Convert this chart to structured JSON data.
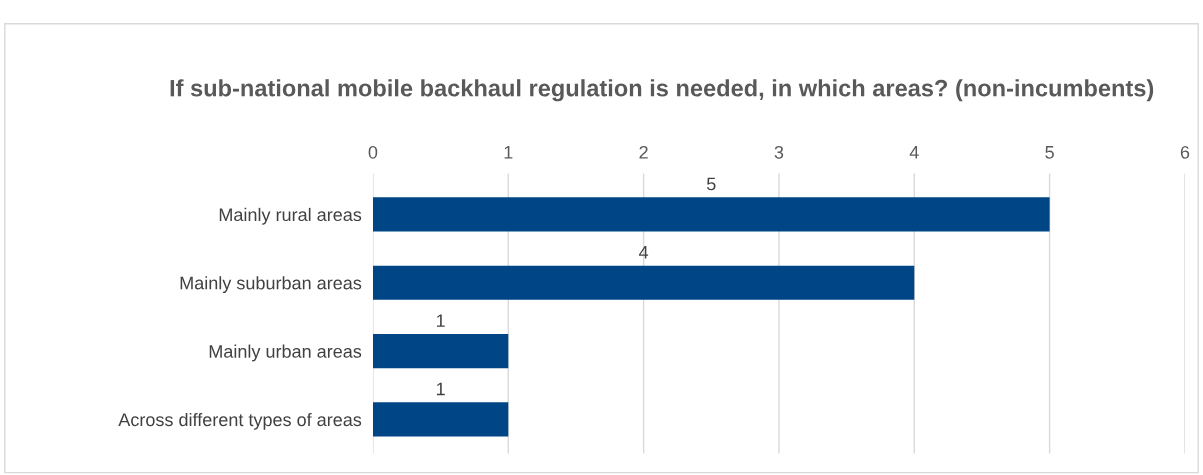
{
  "chart_data": {
    "type": "bar",
    "orientation": "horizontal",
    "title": "If sub-national mobile backhaul regulation is needed, in which areas? (non-incumbents)",
    "categories": [
      "Mainly rural areas",
      "Mainly suburban areas",
      "Mainly urban areas",
      "Across different types of areas"
    ],
    "values": [
      5,
      4,
      1,
      1
    ],
    "color": "#004586",
    "xlim": [
      0,
      6
    ],
    "xticks": [
      0,
      1,
      2,
      3,
      4,
      5,
      6
    ],
    "grid": "x",
    "data_labels": true
  }
}
